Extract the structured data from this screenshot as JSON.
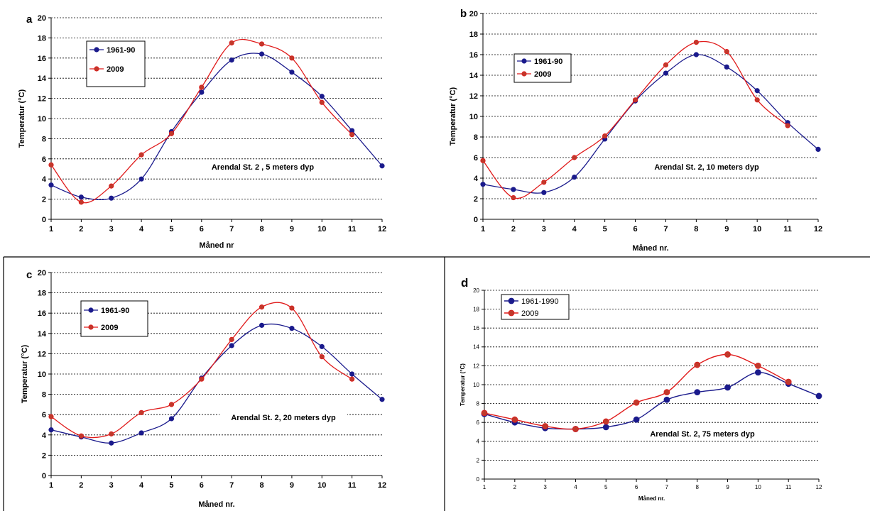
{
  "colors": {
    "series_1961": "#1a1a8c",
    "series_2009": "#e01b1b",
    "marker_2009_fill": "#c0392b",
    "grid": "#000000",
    "divider": "#000000"
  },
  "chart_data": [
    {
      "type": "line",
      "panel_letter": "a",
      "x": [
        1,
        2,
        3,
        4,
        5,
        6,
        7,
        8,
        9,
        10,
        11,
        12
      ],
      "series": [
        {
          "name": "1961-90",
          "values": [
            3.4,
            2.2,
            2.1,
            4.0,
            8.7,
            12.6,
            15.8,
            16.4,
            14.6,
            12.2,
            8.8,
            5.3
          ]
        },
        {
          "name": "2009",
          "values": [
            5.4,
            1.7,
            3.3,
            6.4,
            8.5,
            13.1,
            17.5,
            17.4,
            16.0,
            11.6,
            8.4,
            null
          ]
        }
      ],
      "xlabel": "Måned nr",
      "ylabel": "Temperatur (°C)",
      "xlim": [
        1,
        12
      ],
      "ylim": [
        0,
        20
      ],
      "yticks": [
        0,
        2,
        4,
        6,
        8,
        10,
        12,
        14,
        16,
        18,
        20
      ],
      "ytick_labels": [
        "0",
        "2",
        "4",
        "6",
        "8",
        "10",
        "12",
        "14",
        "16",
        "18",
        "20"
      ],
      "xtick_labels": [
        "1",
        "2",
        "3",
        "4",
        "5",
        "6",
        "7",
        "8",
        "9",
        "10",
        "11",
        "12"
      ],
      "annotation": "Arendal St. 2 , 5 meters dyp",
      "grid": true,
      "legend": "top-left, inside",
      "style": "bold"
    },
    {
      "type": "line",
      "panel_letter": "b",
      "x": [
        1,
        2,
        3,
        4,
        5,
        6,
        7,
        8,
        9,
        10,
        11,
        12
      ],
      "series": [
        {
          "name": "1961-90",
          "values": [
            3.4,
            2.9,
            2.6,
            4.1,
            7.8,
            11.5,
            14.2,
            16.0,
            14.8,
            12.5,
            9.4,
            6.8
          ]
        },
        {
          "name": "2009",
          "values": [
            5.7,
            2.1,
            3.6,
            6.0,
            8.1,
            11.6,
            15.0,
            17.2,
            16.3,
            11.6,
            9.1,
            null
          ]
        }
      ],
      "xlabel": "Måned nr.",
      "ylabel": "Temperatur (°C)",
      "xlim": [
        1,
        12
      ],
      "ylim": [
        0,
        20
      ],
      "yticks": [
        0,
        2,
        4,
        6,
        8,
        10,
        12,
        14,
        16,
        18,
        20
      ],
      "ytick_labels": [
        "0",
        "2",
        "4",
        "6",
        "8",
        "10",
        "12",
        "14",
        "16",
        "18",
        "20"
      ],
      "xtick_labels": [
        "1",
        "2",
        "3",
        "4",
        "5",
        "6",
        "7",
        "8",
        "9",
        "10",
        "11",
        "12"
      ],
      "annotation": "Arendal St. 2, 10 meters dyp",
      "grid": true,
      "legend": "top-left, inside",
      "style": "bold"
    },
    {
      "type": "line",
      "panel_letter": "c",
      "x": [
        1,
        2,
        3,
        4,
        5,
        6,
        7,
        8,
        9,
        10,
        11,
        12
      ],
      "series": [
        {
          "name": "1961-90",
          "values": [
            4.5,
            3.8,
            3.2,
            4.2,
            5.6,
            9.6,
            12.8,
            14.8,
            14.5,
            12.7,
            10.0,
            7.5
          ]
        },
        {
          "name": "2009",
          "values": [
            5.8,
            3.9,
            4.1,
            6.2,
            7.0,
            9.5,
            13.4,
            16.6,
            16.5,
            11.7,
            9.5,
            null
          ]
        }
      ],
      "xlabel": "Måned nr.",
      "ylabel": "Temperatur (°C)",
      "xlim": [
        1,
        12
      ],
      "ylim": [
        0,
        20
      ],
      "yticks": [
        0,
        2,
        4,
        6,
        8,
        10,
        12,
        14,
        16,
        18,
        20
      ],
      "ytick_labels": [
        "0",
        "2",
        "4",
        "6",
        "8",
        "10",
        "12",
        "14",
        "16",
        "18",
        "20"
      ],
      "xtick_labels": [
        "1",
        "2",
        "3",
        "4",
        "5",
        "6",
        "7",
        "8",
        "9",
        "10",
        "11",
        "12"
      ],
      "annotation": "Arendal St. 2, 20 meters dyp",
      "grid": true,
      "legend": "top-left, inside",
      "style": "bold"
    },
    {
      "type": "line",
      "panel_letter": "d",
      "x": [
        1,
        2,
        3,
        4,
        5,
        6,
        7,
        8,
        9,
        10,
        11,
        12
      ],
      "series": [
        {
          "name": "1961-1990",
          "values": [
            6.9,
            6.0,
            5.4,
            5.3,
            5.5,
            6.3,
            8.4,
            9.2,
            9.7,
            11.3,
            10.1,
            8.8
          ]
        },
        {
          "name": "2009",
          "values": [
            7.0,
            6.3,
            5.6,
            5.3,
            6.1,
            8.1,
            9.2,
            12.1,
            13.2,
            12.0,
            10.3,
            null
          ]
        }
      ],
      "xlabel": "Måned nr.",
      "ylabel": "Temperatur (°C)",
      "xlim": [
        1,
        12
      ],
      "ylim": [
        0,
        20
      ],
      "yticks": [
        0,
        2,
        4,
        6,
        8,
        10,
        12,
        14,
        16,
        18,
        20
      ],
      "ytick_labels": [
        "0",
        "2",
        "4",
        "6",
        "8",
        "10",
        "12",
        "14",
        "16",
        "18",
        "20"
      ],
      "xtick_labels": [
        "1",
        "2",
        "3",
        "4",
        "5",
        "6",
        "7",
        "8",
        "9",
        "10",
        "11",
        "12"
      ],
      "annotation": "Arendal St. 2, 75 meters dyp",
      "grid": true,
      "legend": "top-left, inside",
      "style": "plain"
    }
  ]
}
